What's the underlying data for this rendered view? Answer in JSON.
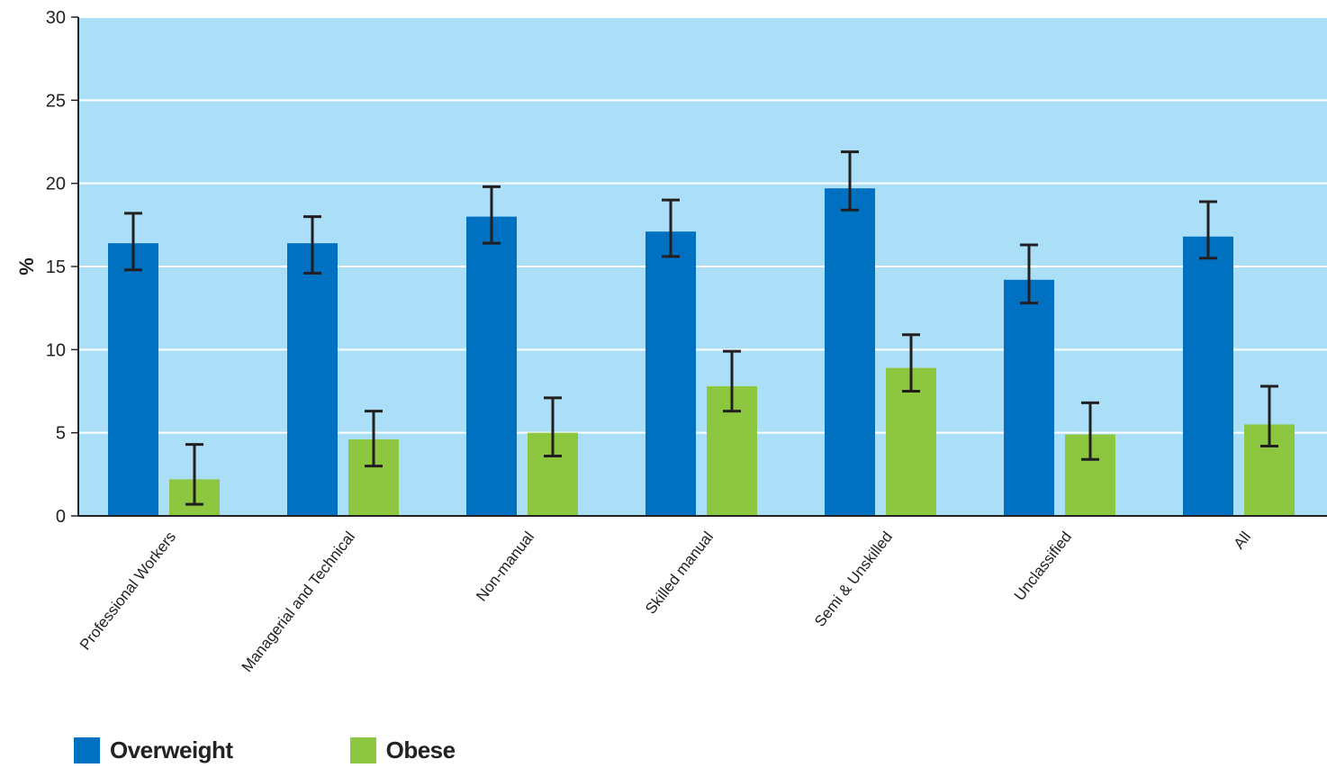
{
  "chart_data": {
    "type": "bar",
    "ylabel": "%",
    "ylim": [
      0,
      30
    ],
    "yticks": [
      0,
      5,
      10,
      15,
      20,
      25,
      30
    ],
    "categories": [
      "Professional Workers",
      "Managerial and Technical",
      "Non-manual",
      "Skilled manual",
      "Semi & Unskilled",
      "Unclassified",
      "All"
    ],
    "series": [
      {
        "name": "Overweight",
        "color": "#0070c0",
        "values": [
          16.4,
          16.4,
          18.0,
          17.1,
          19.7,
          14.2,
          16.8
        ],
        "error_low": [
          14.8,
          14.6,
          16.4,
          15.6,
          18.4,
          12.8,
          15.5
        ],
        "error_high": [
          18.2,
          18.0,
          19.8,
          19.0,
          21.9,
          16.3,
          18.9
        ]
      },
      {
        "name": "Obese",
        "color": "#8dc63f",
        "values": [
          2.2,
          4.6,
          5.0,
          7.8,
          8.9,
          4.9,
          5.5
        ],
        "error_low": [
          0.7,
          3.0,
          3.6,
          6.3,
          7.5,
          3.4,
          4.2
        ],
        "error_high": [
          4.3,
          6.3,
          7.1,
          9.9,
          10.9,
          6.8,
          7.8
        ]
      }
    ],
    "plot_background": "#abdff8",
    "gridline_color": "#ffffff",
    "grid": true,
    "legend_position": "bottom-left"
  }
}
